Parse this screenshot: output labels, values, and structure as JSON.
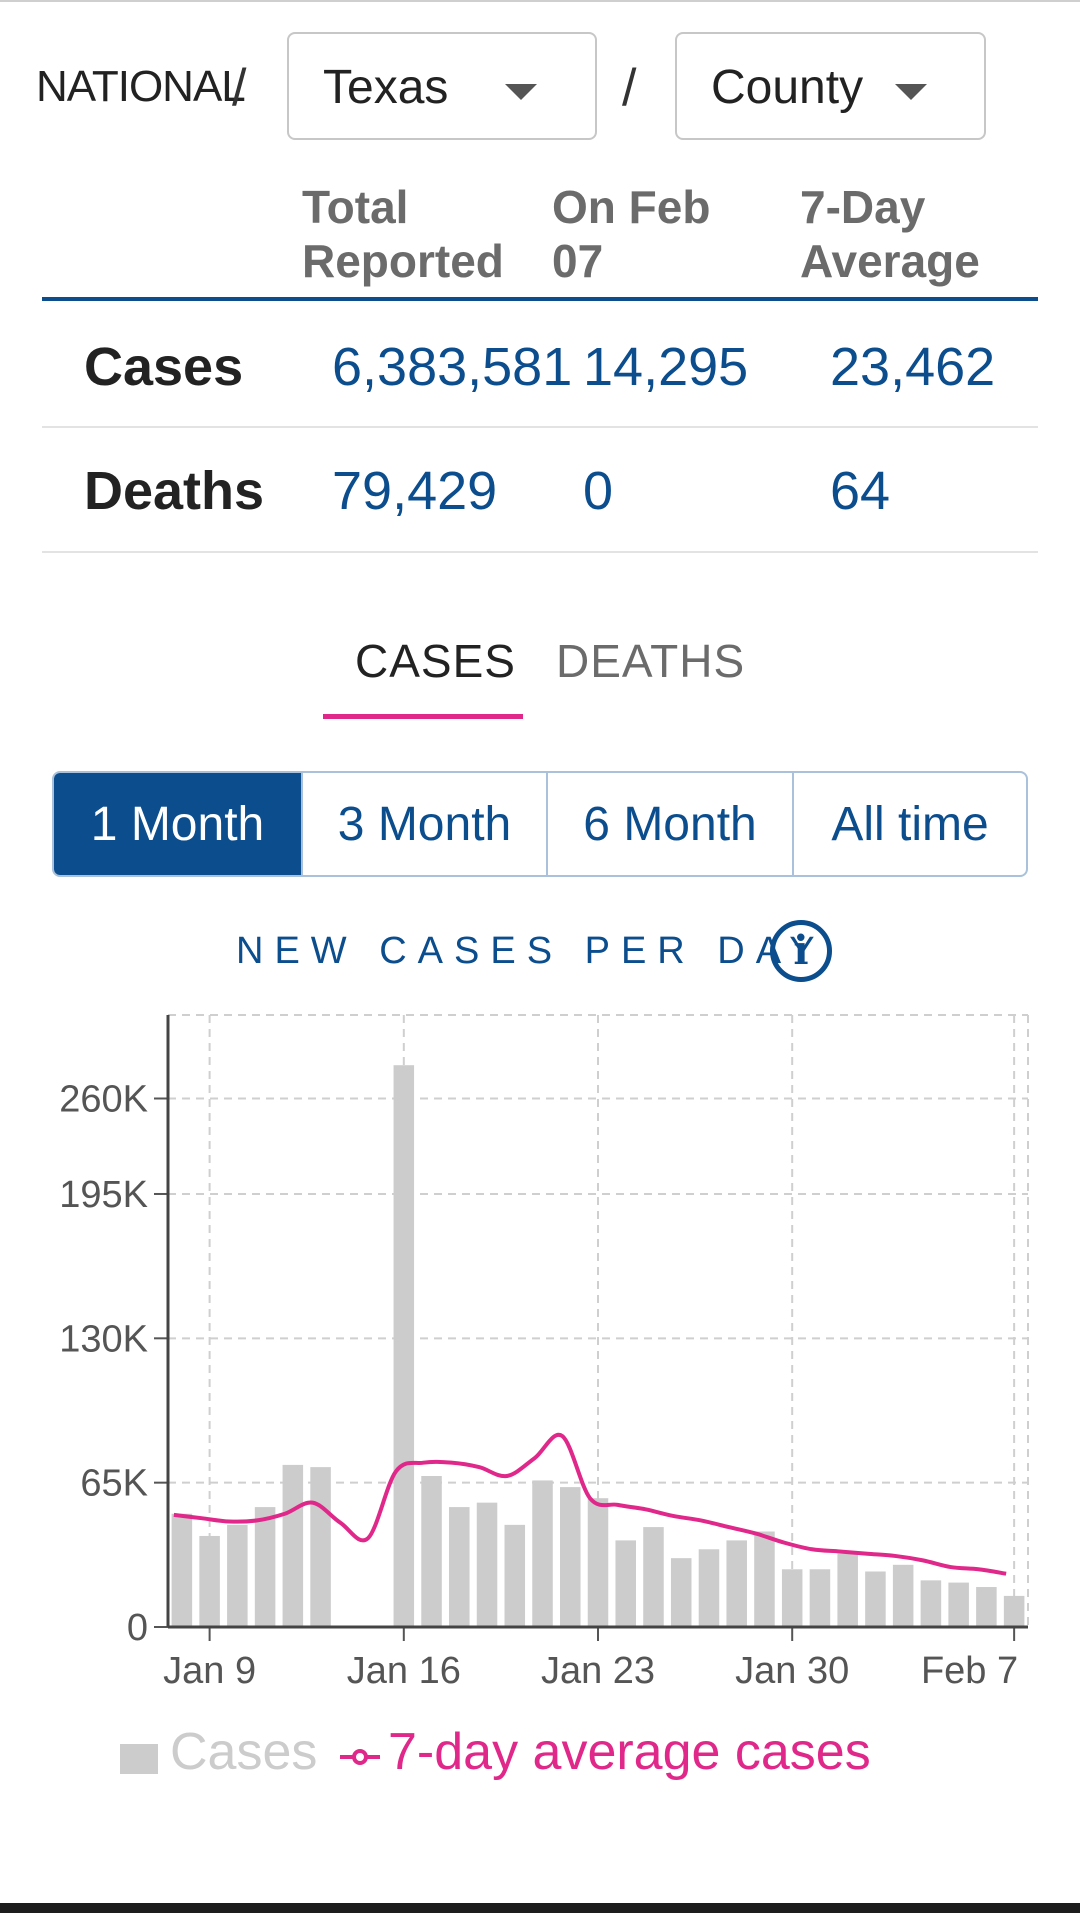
{
  "breadcrumb": {
    "national": "NATIONAL",
    "separator": "/",
    "state": "Texas",
    "county": "County"
  },
  "stats": {
    "headers": {
      "total": "Total\nReported",
      "on_date": "On Feb\n07",
      "avg": "7-Day\nAverage"
    },
    "rows": [
      {
        "label": "Cases",
        "total": "6,383,581",
        "on_date": "14,295",
        "avg": "23,462"
      },
      {
        "label": "Deaths",
        "total": "79,429",
        "on_date": "0",
        "avg": "64"
      }
    ]
  },
  "tabs": [
    {
      "label": "CASES",
      "active": true
    },
    {
      "label": "DEATHS",
      "active": false
    }
  ],
  "ranges": [
    {
      "label": "1 Month",
      "active": true
    },
    {
      "label": "3 Month",
      "active": false
    },
    {
      "label": "6 Month",
      "active": false
    },
    {
      "label": "All time",
      "active": false
    }
  ],
  "chart_heading": "NEW CASES PER DAY",
  "info_icon": "info-icon",
  "colors": {
    "blue": "#0b4d8d",
    "pink": "#e0288a",
    "bar": "#cccccc"
  },
  "chart_data": {
    "type": "bar",
    "title": "NEW CASES PER DAY",
    "x_ticks": [
      "Jan 9",
      "Jan 16",
      "Jan 23",
      "Jan 30",
      "Feb 7"
    ],
    "y_ticks": [
      "0",
      "65K",
      "130K",
      "195K",
      "260K"
    ],
    "ylim": [
      0,
      260000
    ],
    "x": [
      "Jan 8",
      "Jan 9",
      "Jan 10",
      "Jan 11",
      "Jan 12",
      "Jan 13",
      "Jan 14",
      "Jan 15",
      "Jan 16",
      "Jan 17",
      "Jan 18",
      "Jan 19",
      "Jan 20",
      "Jan 21",
      "Jan 22",
      "Jan 23",
      "Jan 24",
      "Jan 25",
      "Jan 26",
      "Jan 27",
      "Jan 28",
      "Jan 29",
      "Jan 30",
      "Jan 31",
      "Feb 1",
      "Feb 2",
      "Feb 3",
      "Feb 4",
      "Feb 5",
      "Feb 6",
      "Feb 7"
    ],
    "series": [
      {
        "name": "Cases",
        "type": "bar",
        "values": [
          51000,
          41000,
          46000,
          54000,
          73000,
          72000,
          0,
          0,
          253000,
          68000,
          54000,
          56000,
          46000,
          66000,
          63000,
          58000,
          39000,
          45000,
          31000,
          35000,
          39000,
          43000,
          26000,
          26000,
          33000,
          25000,
          28000,
          21000,
          20000,
          18000,
          14000
        ]
      },
      {
        "name": "7-day average cases",
        "type": "line",
        "values": [
          50500,
          49000,
          47500,
          48000,
          51000,
          56000,
          47000,
          40000,
          70000,
          74000,
          74000,
          72000,
          68000,
          76000,
          86000,
          58000,
          55000,
          53000,
          50000,
          48000,
          45000,
          42000,
          38000,
          35000,
          34000,
          33000,
          32000,
          30000,
          27000,
          26000,
          24000
        ]
      }
    ],
    "grid": true,
    "legend_position": "bottom"
  }
}
